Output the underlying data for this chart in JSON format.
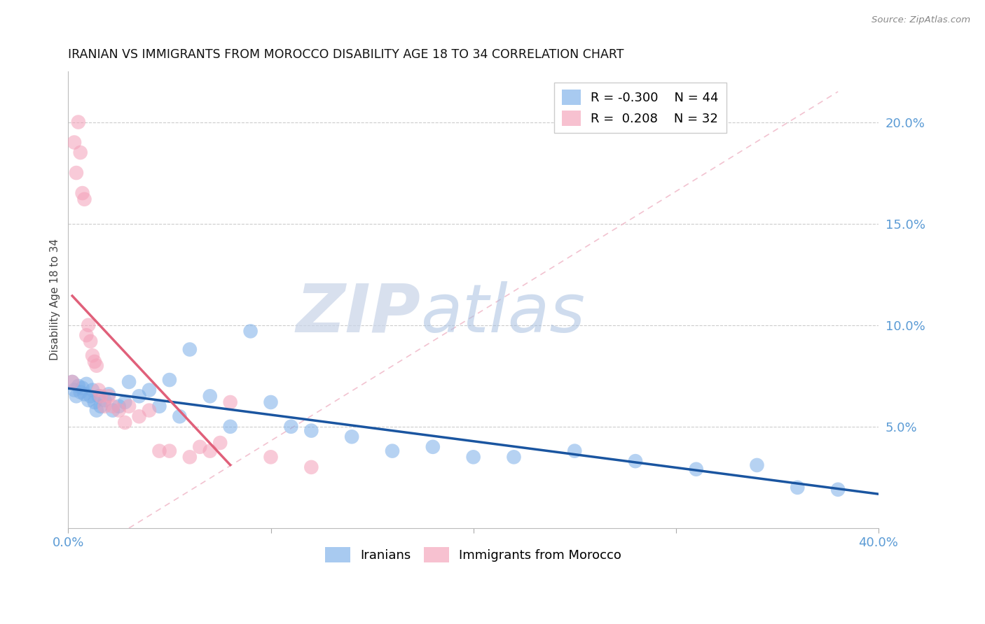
{
  "title": "IRANIAN VS IMMIGRANTS FROM MOROCCO DISABILITY AGE 18 TO 34 CORRELATION CHART",
  "source": "Source: ZipAtlas.com",
  "ylabel": "Disability Age 18 to 34",
  "xlim": [
    0.0,
    0.4
  ],
  "ylim": [
    0.0,
    0.225
  ],
  "yticks_right": [
    0.05,
    0.1,
    0.15,
    0.2
  ],
  "ytick_right_labels": [
    "5.0%",
    "10.0%",
    "15.0%",
    "20.0%"
  ],
  "legend_blue_r": "R = -0.300",
  "legend_blue_n": "N = 44",
  "legend_pink_r": "R =  0.208",
  "legend_pink_n": "N = 32",
  "blue_color": "#7aaee8",
  "pink_color": "#f4a0b8",
  "trend_blue_color": "#1a55a0",
  "trend_pink_color": "#e0607a",
  "diag_color": "#f0b8c8",
  "iranians_x": [
    0.002,
    0.003,
    0.004,
    0.005,
    0.006,
    0.007,
    0.008,
    0.009,
    0.01,
    0.011,
    0.012,
    0.013,
    0.014,
    0.015,
    0.016,
    0.018,
    0.02,
    0.022,
    0.025,
    0.028,
    0.03,
    0.035,
    0.04,
    0.045,
    0.05,
    0.055,
    0.06,
    0.07,
    0.08,
    0.09,
    0.1,
    0.11,
    0.12,
    0.14,
    0.16,
    0.18,
    0.2,
    0.22,
    0.25,
    0.28,
    0.31,
    0.34,
    0.36,
    0.38
  ],
  "iranians_y": [
    0.072,
    0.068,
    0.065,
    0.07,
    0.067,
    0.069,
    0.066,
    0.071,
    0.063,
    0.065,
    0.068,
    0.062,
    0.058,
    0.065,
    0.06,
    0.063,
    0.066,
    0.058,
    0.06,
    0.062,
    0.072,
    0.065,
    0.068,
    0.06,
    0.073,
    0.055,
    0.088,
    0.065,
    0.05,
    0.097,
    0.062,
    0.05,
    0.048,
    0.045,
    0.038,
    0.04,
    0.035,
    0.035,
    0.038,
    0.033,
    0.029,
    0.031,
    0.02,
    0.019
  ],
  "morocco_x": [
    0.002,
    0.003,
    0.004,
    0.005,
    0.006,
    0.007,
    0.008,
    0.009,
    0.01,
    0.011,
    0.012,
    0.013,
    0.014,
    0.015,
    0.016,
    0.018,
    0.02,
    0.022,
    0.025,
    0.028,
    0.03,
    0.035,
    0.04,
    0.045,
    0.05,
    0.06,
    0.065,
    0.07,
    0.075,
    0.08,
    0.1,
    0.12
  ],
  "morocco_y": [
    0.072,
    0.19,
    0.175,
    0.2,
    0.185,
    0.165,
    0.162,
    0.095,
    0.1,
    0.092,
    0.085,
    0.082,
    0.08,
    0.068,
    0.065,
    0.06,
    0.065,
    0.06,
    0.058,
    0.052,
    0.06,
    0.055,
    0.058,
    0.038,
    0.038,
    0.035,
    0.04,
    0.038,
    0.042,
    0.062,
    0.035,
    0.03
  ]
}
